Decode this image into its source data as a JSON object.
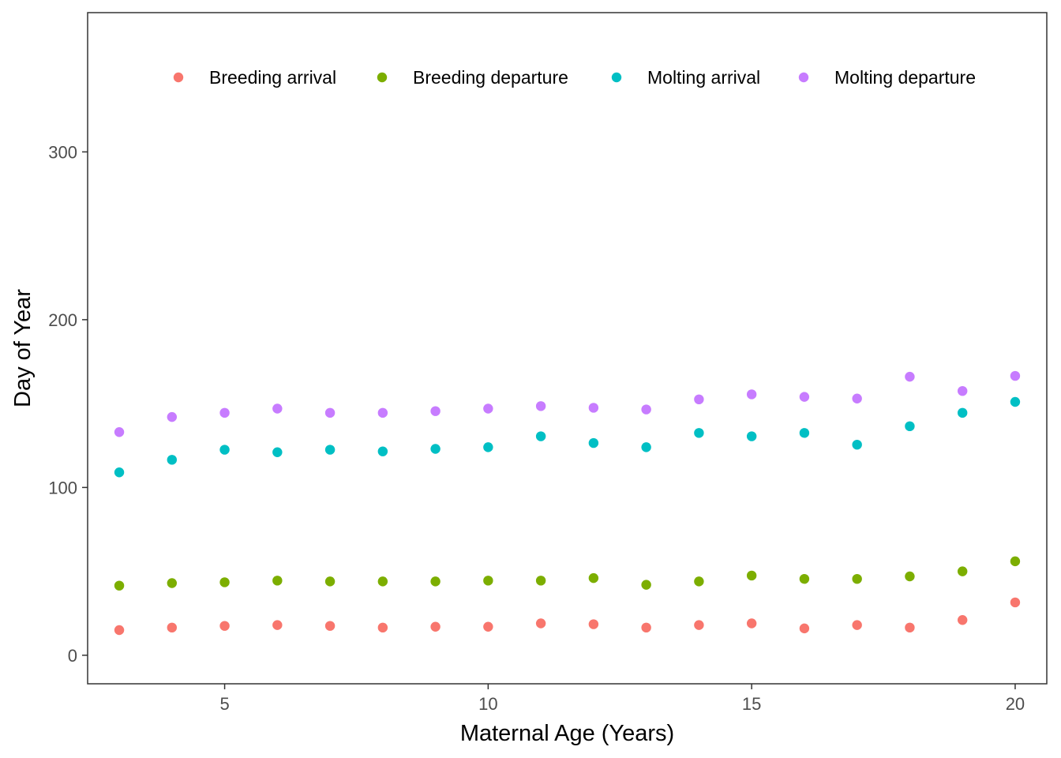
{
  "chart_data": {
    "type": "scatter",
    "title": "",
    "xlabel": "Maternal Age (Years)",
    "ylabel": "Day of Year",
    "xlim": [
      2.4,
      20.6
    ],
    "ylim": [
      -17,
      383
    ],
    "x_ticks": [
      5,
      10,
      15,
      20
    ],
    "y_ticks": [
      0,
      100,
      200,
      300
    ],
    "grid": false,
    "legend_position": "top-inside",
    "x": [
      3,
      4,
      5,
      6,
      7,
      8,
      9,
      10,
      11,
      12,
      13,
      14,
      15,
      16,
      17,
      18,
      19,
      20
    ],
    "series": [
      {
        "name": "Breeding arrival",
        "color": "#F8766D",
        "values": [
          15,
          16.5,
          17.5,
          18,
          17.5,
          16.5,
          17,
          17,
          19,
          18.5,
          16.5,
          18,
          19,
          16,
          18,
          16.5,
          21,
          31.5
        ]
      },
      {
        "name": "Breeding departure",
        "color": "#7CAE00",
        "values": [
          41.5,
          43,
          43.5,
          44.5,
          44,
          44,
          44,
          44.5,
          44.5,
          46,
          42,
          44,
          47.5,
          45.5,
          45.5,
          47,
          50,
          56
        ]
      },
      {
        "name": "Molting arrival",
        "color": "#00BFC4",
        "values": [
          109,
          116.5,
          122.5,
          121,
          122.5,
          121.5,
          123,
          124,
          130.5,
          126.5,
          124,
          132.5,
          130.5,
          132.5,
          125.5,
          136.5,
          144.5,
          151
        ]
      },
      {
        "name": "Molting departure",
        "color": "#C77CFF",
        "values": [
          133,
          142,
          144.5,
          147,
          144.5,
          144.5,
          145.5,
          147,
          148.5,
          147.5,
          146.5,
          152.5,
          155.5,
          154,
          153,
          166,
          157.5,
          166.5
        ]
      }
    ]
  }
}
